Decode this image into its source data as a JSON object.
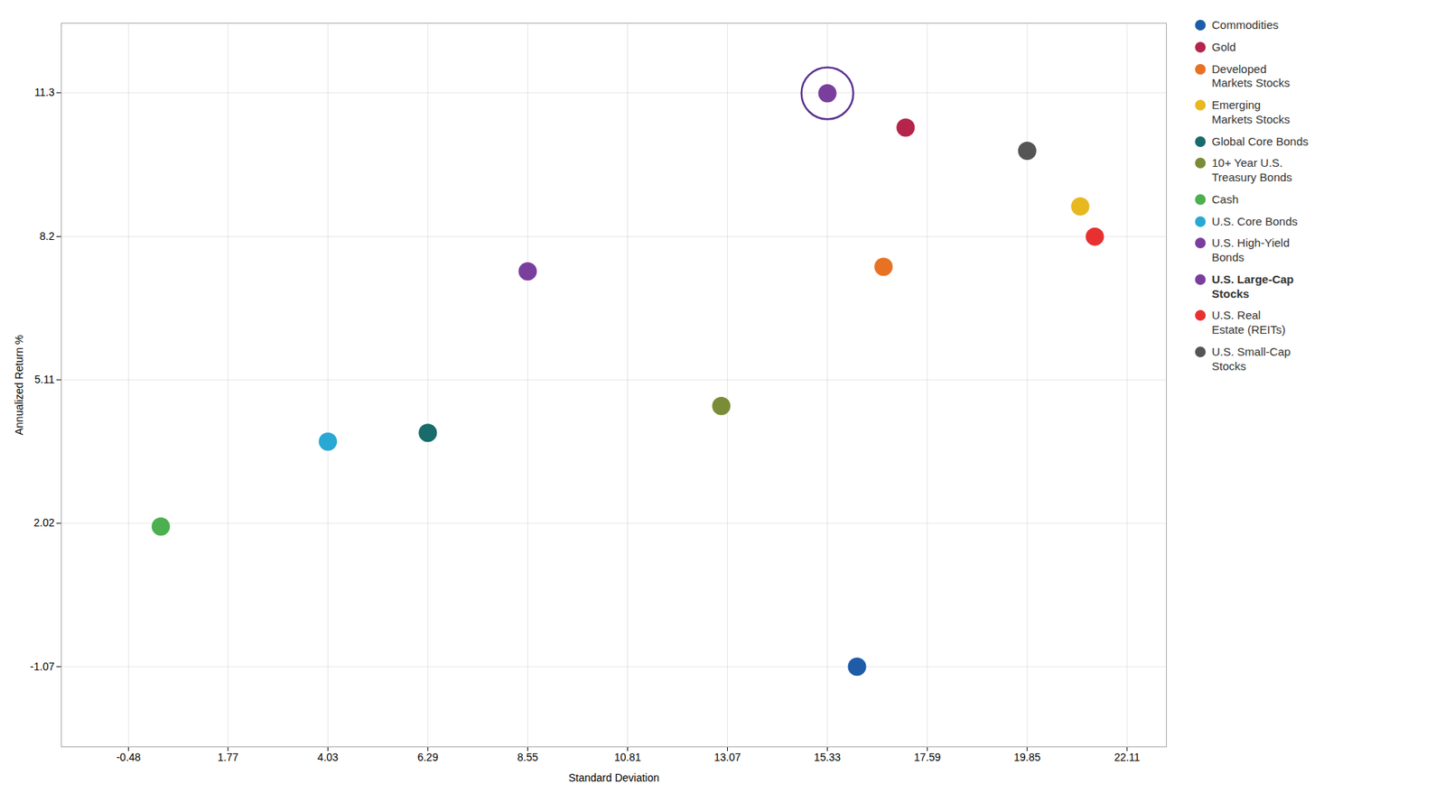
{
  "chart_data": {
    "type": "scatter",
    "xlabel": "Standard Deviation",
    "ylabel": "Annualized Return %",
    "series": [
      {
        "name": "Commodities",
        "color": "#1f5ca8",
        "x": [
          16.0
        ],
        "y": [
          -1.07
        ]
      },
      {
        "name": "Gold",
        "color": "#b5244a",
        "x": [
          17.1
        ],
        "y": [
          10.55
        ]
      },
      {
        "name": "Developed\nMarkets Stocks",
        "color": "#e87223",
        "x": [
          16.6
        ],
        "y": [
          7.55
        ]
      },
      {
        "name": "Emerging\nMarkets Stocks",
        "color": "#e8b820",
        "x": [
          21.05
        ],
        "y": [
          8.85
        ]
      },
      {
        "name": "Global Core Bonds",
        "color": "#1a6b6b",
        "x": [
          6.29
        ],
        "y": [
          3.97
        ]
      },
      {
        "name": "10+ Year U.S.\nTreasury Bonds",
        "color": "#7a8c35",
        "x": [
          12.93
        ],
        "y": [
          4.55
        ]
      },
      {
        "name": "Cash",
        "color": "#4caf50",
        "x": [
          0.25
        ],
        "y": [
          1.95
        ]
      },
      {
        "name": "U.S. Core Bonds",
        "color": "#29a8d4",
        "x": [
          4.03
        ],
        "y": [
          3.78
        ]
      },
      {
        "name": "U.S. High-Yield\nBonds",
        "color": "#7a3f9d",
        "x": [
          8.55
        ],
        "y": [
          7.45
        ]
      },
      {
        "name": "U.S. Large-Cap\nStocks",
        "color": "#7a3f9d",
        "x": [
          15.33
        ],
        "y": [
          11.29
        ],
        "marker": "circled"
      },
      {
        "name": "U.S. Real\nEstate (REITs)",
        "color": "#e83030",
        "x": [
          21.38
        ],
        "y": [
          8.2
        ]
      },
      {
        "name": "U.S. Small-Cap\nStocks",
        "color": "#555555",
        "x": [
          19.85
        ],
        "y": [
          10.05
        ]
      }
    ],
    "xlim": [
      -2.0,
      23.0
    ],
    "ylim": [
      -2.8,
      12.8
    ],
    "xticks": [
      -0.48,
      1.77,
      4.03,
      6.29,
      8.55,
      10.81,
      13.07,
      15.33,
      17.59,
      19.85,
      22.11
    ],
    "yticks": [
      -1.07,
      2.02,
      5.11,
      8.2,
      11.3
    ],
    "grid": true,
    "legend": "right"
  }
}
